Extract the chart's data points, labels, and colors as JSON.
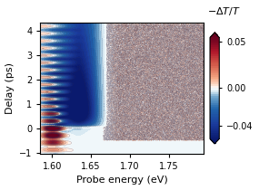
{
  "xlabel": "Probe energy (eV)",
  "ylabel": "Delay (ps)",
  "colorbar_label": "$-\\Delta T/T$",
  "colorbar_ticks": [
    0.05,
    0,
    -0.04
  ],
  "xlim": [
    1.585,
    1.795
  ],
  "ylim": [
    -1.05,
    4.35
  ],
  "xticks": [
    1.6,
    1.65,
    1.7,
    1.75
  ],
  "yticks": [
    -1,
    0,
    1,
    2,
    3,
    4
  ],
  "vmin": -0.055,
  "vmax": 0.055,
  "background_color": "#ffffff",
  "figsize": [
    2.85,
    2.1
  ],
  "dpi": 100,
  "band_edge": 1.6,
  "phonon_period": 0.3,
  "n_phonons": 14
}
